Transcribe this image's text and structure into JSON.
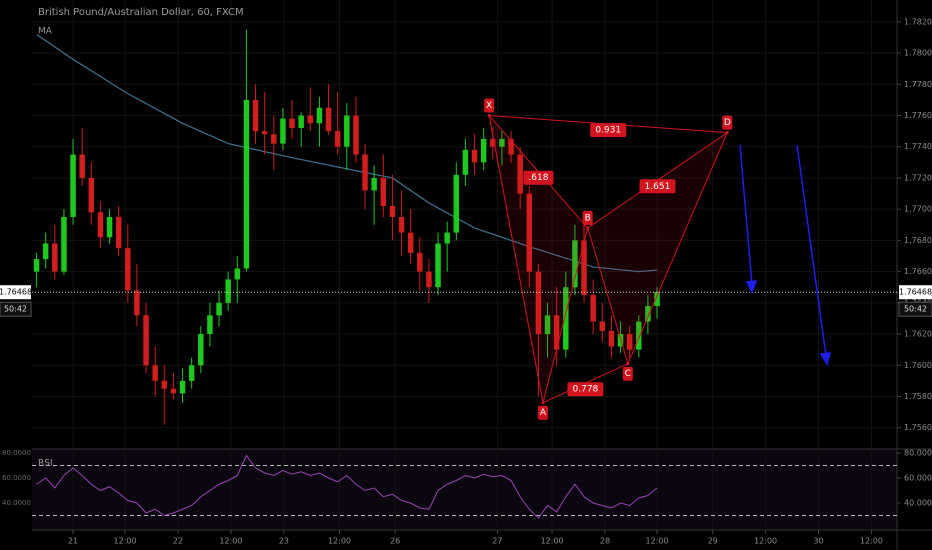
{
  "chart_data": {
    "type": "candlestick",
    "title": "British Pound/Australian Dollar, 60, FXCM",
    "indicator_label": "MA",
    "up_color": "#1ec81e",
    "down_color": "#d21e1e",
    "grid": true,
    "open": [
      1.766,
      1.7668,
      1.7678,
      1.766,
      1.7695,
      1.7735,
      1.772,
      1.7698,
      1.7682,
      1.7695,
      1.7675,
      1.7648,
      1.7632,
      1.76,
      1.759,
      1.7585,
      1.7582,
      1.759,
      1.76,
      1.762,
      1.7632,
      1.764,
      1.7655,
      1.7662,
      1.777,
      1.775,
      1.7748,
      1.7742,
      1.7758,
      1.7752,
      1.776,
      1.7755,
      1.7765,
      1.775,
      1.774,
      1.776,
      1.7735,
      1.7712,
      1.772,
      1.7702,
      1.7695,
      1.7685,
      1.7672,
      1.766,
      1.765,
      1.7678,
      1.7685,
      1.7722,
      1.7738,
      1.773,
      1.7745,
      1.774,
      1.7745,
      1.7735,
      1.771,
      1.766,
      1.762,
      1.7632,
      1.761,
      1.765,
      1.768,
      1.7645,
      1.7628,
      1.7622,
      1.7612,
      1.762,
      1.761,
      1.7628,
      1.7638
    ],
    "high": [
      1.7672,
      1.7685,
      1.769,
      1.77,
      1.7745,
      1.7752,
      1.773,
      1.7705,
      1.77,
      1.7702,
      1.769,
      1.7665,
      1.764,
      1.7612,
      1.76,
      1.7595,
      1.7598,
      1.7605,
      1.7625,
      1.764,
      1.7648,
      1.766,
      1.767,
      1.7815,
      1.778,
      1.7775,
      1.776,
      1.7765,
      1.777,
      1.7762,
      1.7778,
      1.7772,
      1.778,
      1.7775,
      1.7768,
      1.7772,
      1.7742,
      1.7728,
      1.7735,
      1.7722,
      1.7712,
      1.77,
      1.7682,
      1.7668,
      1.7685,
      1.7692,
      1.773,
      1.7745,
      1.7748,
      1.7752,
      1.7752,
      1.775,
      1.775,
      1.774,
      1.7715,
      1.7665,
      1.764,
      1.765,
      1.766,
      1.769,
      1.769,
      1.7655,
      1.764,
      1.7632,
      1.7628,
      1.7625,
      1.7632,
      1.7645,
      1.765
    ],
    "low": [
      1.765,
      1.7662,
      1.7655,
      1.7658,
      1.769,
      1.7715,
      1.769,
      1.7675,
      1.7678,
      1.767,
      1.764,
      1.7625,
      1.7595,
      1.758,
      1.7562,
      1.7578,
      1.7576,
      1.7585,
      1.7595,
      1.7612,
      1.7625,
      1.7635,
      1.764,
      1.766,
      1.7742,
      1.7735,
      1.7725,
      1.7738,
      1.7745,
      1.774,
      1.775,
      1.774,
      1.7748,
      1.7735,
      1.7725,
      1.773,
      1.77,
      1.769,
      1.7695,
      1.768,
      1.767,
      1.7665,
      1.7648,
      1.764,
      1.7645,
      1.766,
      1.768,
      1.7715,
      1.7722,
      1.7725,
      1.7732,
      1.7728,
      1.773,
      1.77,
      1.765,
      1.758,
      1.7605,
      1.76,
      1.7605,
      1.7645,
      1.764,
      1.762,
      1.7615,
      1.7605,
      1.7608,
      1.7605,
      1.7605,
      1.762,
      1.763
    ],
    "close": [
      1.7668,
      1.7678,
      1.766,
      1.7695,
      1.7735,
      1.772,
      1.7698,
      1.7682,
      1.7695,
      1.7675,
      1.7648,
      1.7632,
      1.76,
      1.759,
      1.7585,
      1.7582,
      1.759,
      1.76,
      1.762,
      1.7632,
      1.764,
      1.7655,
      1.7662,
      1.777,
      1.775,
      1.7748,
      1.7742,
      1.7758,
      1.7752,
      1.776,
      1.7755,
      1.7765,
      1.775,
      1.774,
      1.776,
      1.7735,
      1.7712,
      1.772,
      1.7702,
      1.7695,
      1.7685,
      1.7672,
      1.766,
      1.765,
      1.7678,
      1.7685,
      1.7722,
      1.7738,
      1.773,
      1.7745,
      1.774,
      1.7745,
      1.7735,
      1.771,
      1.766,
      1.762,
      1.7632,
      1.761,
      1.765,
      1.768,
      1.7645,
      1.7628,
      1.7622,
      1.7612,
      1.762,
      1.761,
      1.7628,
      1.7638,
      1.7647
    ],
    "xlim": [
      -0.5,
      94.3
    ],
    "xticks": [
      {
        "value": 4,
        "label": "21"
      },
      {
        "value": 9.7,
        "label": "12:00"
      },
      {
        "value": 15.5,
        "label": "22"
      },
      {
        "value": 21.3,
        "label": "12:00"
      },
      {
        "value": 27.1,
        "label": "23"
      },
      {
        "value": 33.2,
        "label": "12:00"
      },
      {
        "value": 39.3,
        "label": "26"
      },
      {
        "value": 50.5,
        "label": "27"
      },
      {
        "value": 56.5,
        "label": "12:00"
      },
      {
        "value": 62.3,
        "label": "28"
      },
      {
        "value": 68,
        "label": "12:00"
      },
      {
        "value": 74.1,
        "label": "29"
      },
      {
        "value": 79.9,
        "label": "12:00"
      },
      {
        "value": 85.7,
        "label": "30"
      },
      {
        "value": 91.5,
        "label": "12:00"
      }
    ],
    "ylim": [
      1.7547,
      1.7834
    ],
    "yticks": [
      {
        "value": 1.756,
        "label": "1.75600"
      },
      {
        "value": 1.758,
        "label": "1.75800"
      },
      {
        "value": 1.76,
        "label": "1.76000"
      },
      {
        "value": 1.762,
        "label": "1.76200"
      },
      {
        "value": 1.764,
        "label": "1.76400"
      },
      {
        "value": 1.766,
        "label": "1.76600"
      },
      {
        "value": 1.768,
        "label": "1.76800"
      },
      {
        "value": 1.77,
        "label": "1.77000"
      },
      {
        "value": 1.772,
        "label": "1.77200"
      },
      {
        "value": 1.774,
        "label": "1.77400"
      },
      {
        "value": 1.776,
        "label": "1.77600"
      },
      {
        "value": 1.778,
        "label": "1.77800"
      },
      {
        "value": 1.78,
        "label": "1.78000"
      },
      {
        "value": 1.782,
        "label": "1.78200"
      }
    ],
    "last_price": {
      "value": 1.76468,
      "label": "1.76468"
    },
    "countdown": "50:42",
    "ma": {
      "color": "#3e7391",
      "x": [
        0,
        4,
        10,
        16,
        21,
        28,
        33,
        39,
        43,
        48,
        54,
        61,
        66,
        68
      ],
      "values": [
        1.7812,
        1.7796,
        1.7774,
        1.7755,
        1.7742,
        1.7733,
        1.7727,
        1.772,
        1.7704,
        1.7688,
        1.7676,
        1.7663,
        1.766,
        1.7661
      ]
    },
    "pattern": {
      "color": "#d2141e",
      "points": [
        {
          "label": "X",
          "x": 49.6,
          "y": 1.776
        },
        {
          "label": "A",
          "x": 55.5,
          "y": 1.7576
        },
        {
          "label": "B",
          "x": 60.4,
          "y": 1.7688
        },
        {
          "label": "C",
          "x": 64.8,
          "y": 1.7601
        },
        {
          "label": "D",
          "x": 75.7,
          "y": 1.7749
        }
      ],
      "ratios": [
        {
          "label": "0.931",
          "legs": [
            0,
            4
          ]
        },
        {
          "label": ".618",
          "legs": [
            0,
            2
          ]
        },
        {
          "label": "1.651",
          "legs": [
            2,
            4
          ]
        },
        {
          "label": "0.778",
          "legs": [
            1,
            3
          ]
        }
      ]
    },
    "rsi": {
      "label": "RSI",
      "color": "#9a45b4",
      "ylim": [
        18.4,
        82.4
      ],
      "yticks": [
        {
          "value": 80,
          "label": "80.0000"
        },
        {
          "value": 60,
          "label": "60.0000"
        },
        {
          "value": 40,
          "label": "40.0000"
        }
      ],
      "levels": [
        70,
        30
      ],
      "values": [
        55,
        60,
        52,
        62,
        68,
        62,
        55,
        50,
        53,
        48,
        42,
        40,
        32,
        35,
        30,
        32,
        35,
        38,
        45,
        50,
        55,
        58,
        62,
        78,
        68,
        64,
        62,
        66,
        63,
        65,
        62,
        64,
        60,
        57,
        62,
        55,
        50,
        52,
        45,
        47,
        42,
        40,
        36,
        35,
        50,
        55,
        58,
        62,
        60,
        63,
        61,
        62,
        58,
        45,
        35,
        28,
        38,
        33,
        45,
        55,
        45,
        40,
        38,
        36,
        40,
        38,
        44,
        46,
        52
      ]
    }
  }
}
